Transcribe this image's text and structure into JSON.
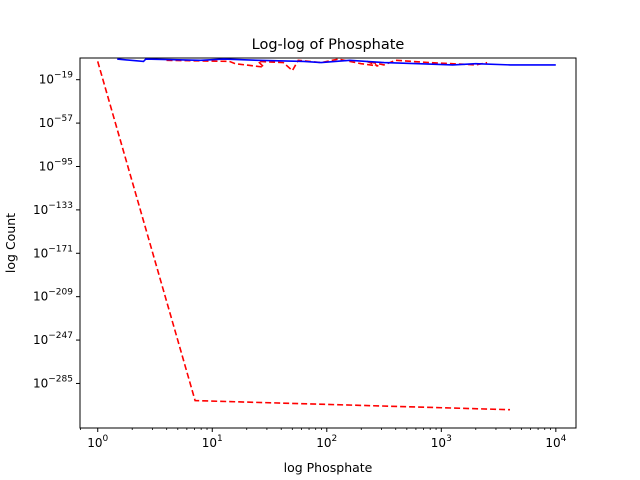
{
  "chart_data": {
    "type": "line",
    "title": "Log-log of Phosphate",
    "xlabel": "log Phosphate",
    "ylabel": "log Count",
    "xscale": "log",
    "yscale": "log",
    "xlim": [
      0.7,
      15000
    ],
    "ylim_exponent": [
      -324,
      0
    ],
    "x_ticks": [
      {
        "base": "10",
        "exp": "0"
      },
      {
        "base": "10",
        "exp": "1"
      },
      {
        "base": "10",
        "exp": "2"
      },
      {
        "base": "10",
        "exp": "3"
      },
      {
        "base": "10",
        "exp": "4"
      }
    ],
    "y_ticks": [
      {
        "base": "10",
        "exp": "−19"
      },
      {
        "base": "10",
        "exp": "−57"
      },
      {
        "base": "10",
        "exp": "−95"
      },
      {
        "base": "10",
        "exp": "−133"
      },
      {
        "base": "10",
        "exp": "−171"
      },
      {
        "base": "10",
        "exp": "−209"
      },
      {
        "base": "10",
        "exp": "−247"
      },
      {
        "base": "10",
        "exp": "−285"
      }
    ],
    "grid": false,
    "legend": "none",
    "series": [
      {
        "color": "#ff0000",
        "style": "dashed",
        "points_log10": [
          [
            0.0,
            -3
          ],
          [
            0.85,
            -300
          ],
          [
            3.6,
            -308
          ]
        ]
      },
      {
        "color": "#ff0000",
        "style": "dashed",
        "points_log10": [
          [
            0.6,
            -2
          ],
          [
            1.15,
            -3
          ],
          [
            1.2,
            -5
          ],
          [
            1.45,
            -8
          ],
          [
            1.4,
            -3
          ],
          [
            1.62,
            -4
          ],
          [
            1.7,
            -11
          ],
          [
            1.75,
            -2
          ],
          [
            1.95,
            -4
          ],
          [
            2.1,
            -1
          ],
          [
            2.3,
            -5
          ],
          [
            2.45,
            -7
          ],
          [
            2.35,
            -3
          ],
          [
            2.5,
            -6
          ],
          [
            2.6,
            -2
          ],
          [
            2.9,
            -4
          ],
          [
            3.3,
            -6
          ],
          [
            3.4,
            -4
          ]
        ]
      },
      {
        "color": "#0000ff",
        "style": "solid",
        "points_log10": [
          [
            0.17,
            -1
          ],
          [
            0.4,
            -3
          ],
          [
            0.42,
            -1
          ],
          [
            0.9,
            -2
          ],
          [
            1.1,
            -1
          ],
          [
            1.4,
            -2
          ],
          [
            1.8,
            -3
          ],
          [
            1.95,
            -4
          ],
          [
            2.2,
            -2
          ],
          [
            2.5,
            -4
          ],
          [
            2.8,
            -5
          ],
          [
            3.1,
            -6
          ],
          [
            3.3,
            -5
          ],
          [
            3.6,
            -6
          ],
          [
            4.0,
            -6
          ]
        ]
      }
    ]
  }
}
